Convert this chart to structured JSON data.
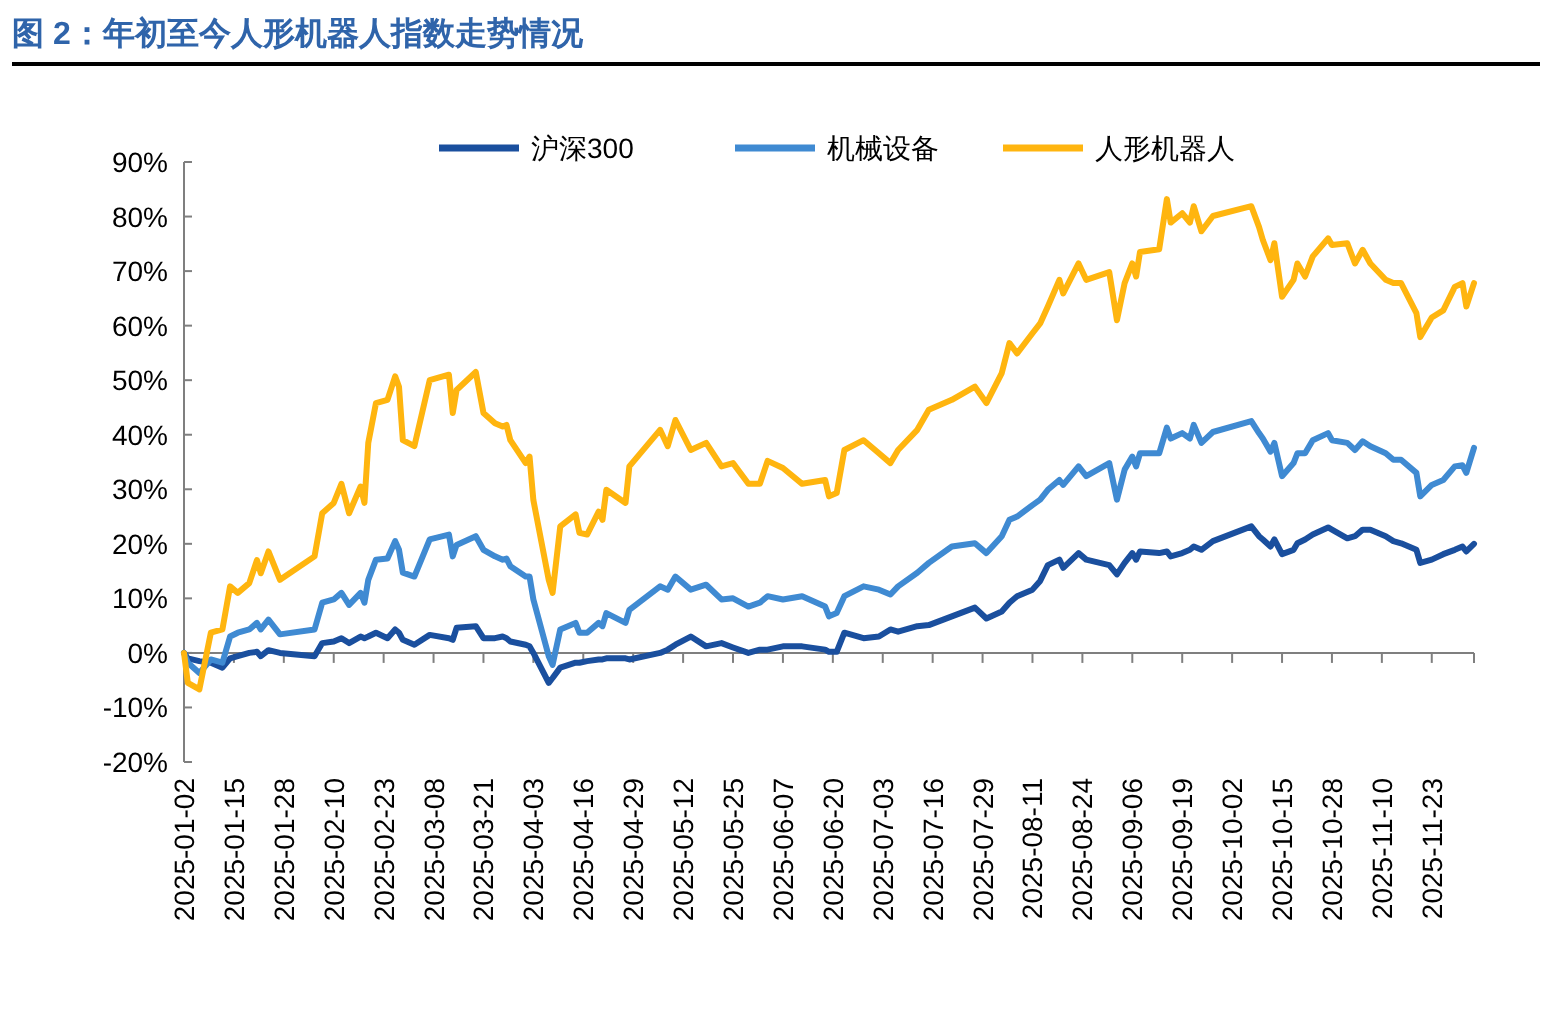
{
  "chart_data": {
    "type": "line",
    "title": "图 2：年初至今人形机器人指数走势情况",
    "x": [
      "2025-01-02",
      "2025-01-03",
      "2025-01-06",
      "2025-01-09",
      "2025-01-12",
      "2025-01-14",
      "2025-01-16",
      "2025-01-19",
      "2025-01-21",
      "2025-01-22",
      "2025-01-24",
      "2025-01-27",
      "2025-02-05",
      "2025-02-07",
      "2025-02-10",
      "2025-02-12",
      "2025-02-14",
      "2025-02-17",
      "2025-02-18",
      "2025-02-19",
      "2025-02-21",
      "2025-02-24",
      "2025-02-26",
      "2025-02-27",
      "2025-02-28",
      "2025-03-03",
      "2025-03-07",
      "2025-03-12",
      "2025-03-13",
      "2025-03-14",
      "2025-03-19",
      "2025-03-21",
      "2025-03-24",
      "2025-03-26",
      "2025-03-27",
      "2025-03-28",
      "2025-04-01",
      "2025-04-02",
      "2025-04-03",
      "2025-04-07",
      "2025-04-08",
      "2025-04-10",
      "2025-04-14",
      "2025-04-15",
      "2025-04-17",
      "2025-04-20",
      "2025-04-21",
      "2025-04-22",
      "2025-04-27",
      "2025-04-28",
      "2025-05-06",
      "2025-05-08",
      "2025-05-10",
      "2025-05-14",
      "2025-05-18",
      "2025-05-22",
      "2025-05-25",
      "2025-05-29",
      "2025-06-01",
      "2025-06-03",
      "2025-06-07",
      "2025-06-12",
      "2025-06-18",
      "2025-06-19",
      "2025-06-21",
      "2025-06-23",
      "2025-06-28",
      "2025-07-02",
      "2025-07-05",
      "2025-07-07",
      "2025-07-12",
      "2025-07-15",
      "2025-07-21",
      "2025-07-27",
      "2025-07-30",
      "2025-08-03",
      "2025-08-05",
      "2025-08-07",
      "2025-08-11",
      "2025-08-13",
      "2025-08-15",
      "2025-08-18",
      "2025-08-19",
      "2025-08-23",
      "2025-08-25",
      "2025-08-31",
      "2025-09-02",
      "2025-09-04",
      "2025-09-06",
      "2025-09-07",
      "2025-09-08",
      "2025-09-13",
      "2025-09-15",
      "2025-09-16",
      "2025-09-19",
      "2025-09-21",
      "2025-09-22",
      "2025-09-24",
      "2025-09-27",
      "2025-10-07",
      "2025-10-09",
      "2025-10-10",
      "2025-10-12",
      "2025-10-13",
      "2025-10-15",
      "2025-10-18",
      "2025-10-19",
      "2025-10-21",
      "2025-10-23",
      "2025-10-27",
      "2025-10-28",
      "2025-11-01",
      "2025-11-03",
      "2025-11-05",
      "2025-11-07",
      "2025-11-11",
      "2025-11-13",
      "2025-11-15",
      "2025-11-19",
      "2025-11-20",
      "2025-11-23",
      "2025-11-26",
      "2025-11-29",
      "2025-12-01",
      "2025-12-02",
      "2025-12-04"
    ],
    "series": [
      {
        "name": "沪深300",
        "color": "#1a4f9e",
        "values": [
          0,
          -1,
          -1.5,
          -1.8,
          -2.7,
          -1,
          -0.6,
          0,
          0.2,
          -0.6,
          0.5,
          0,
          -0.6,
          1.8,
          2.1,
          2.7,
          1.8,
          3,
          2.7,
          3,
          3.7,
          2.7,
          4.3,
          3.7,
          2.4,
          1.5,
          3.3,
          2.7,
          2.4,
          4.6,
          4.9,
          2.7,
          2.7,
          3,
          2.7,
          2.1,
          1.5,
          1.2,
          0,
          -5.5,
          -4.6,
          -2.7,
          -1.8,
          -1.8,
          -1.5,
          -1.2,
          -1.2,
          -1,
          -1,
          -1.2,
          0,
          0.6,
          1.5,
          3,
          1.2,
          1.8,
          1,
          0,
          0.6,
          0.6,
          1.2,
          1.2,
          0.6,
          0.2,
          0.2,
          3.7,
          2.7,
          3,
          4.3,
          3.9,
          4.9,
          5.1,
          6.7,
          8.3,
          6.3,
          7.6,
          9.2,
          10.4,
          11.6,
          13.2,
          16.1,
          17.1,
          15.6,
          18.3,
          17.1,
          16.1,
          14.4,
          16.5,
          18.3,
          17.1,
          18.6,
          18.3,
          18.6,
          17.7,
          18.3,
          18.9,
          19.5,
          18.9,
          20.5,
          23.2,
          21.4,
          20.8,
          19.5,
          20.8,
          18.1,
          18.9,
          20.1,
          20.8,
          21.7,
          23,
          22.6,
          21,
          21.4,
          22.6,
          22.6,
          21.4,
          20.5,
          20.1,
          18.9,
          16.5,
          17.1,
          18.1,
          18.9,
          19.5,
          18.6,
          20
        ]
      },
      {
        "name": "机械设备",
        "color": "#3f8ad2",
        "values": [
          0,
          -1.8,
          -3.7,
          -1.2,
          -1.8,
          3,
          3.7,
          4.3,
          5.5,
          4.3,
          6.1,
          3.4,
          4.3,
          9.2,
          9.8,
          11,
          8.8,
          11,
          9.2,
          13.4,
          17.1,
          17.3,
          20.5,
          18.9,
          14.7,
          14,
          20.8,
          21.7,
          17.7,
          19.8,
          21.4,
          18.9,
          17.7,
          17.1,
          17.3,
          15.9,
          14,
          14,
          9.8,
          -0.6,
          -2.2,
          4.3,
          5.5,
          3.7,
          3.7,
          5.5,
          4.9,
          7.3,
          5.5,
          7.9,
          12.2,
          11.6,
          14,
          11.6,
          12.5,
          9.8,
          10,
          8.5,
          9.2,
          10.4,
          9.8,
          10.4,
          8.5,
          6.7,
          7.3,
          10.4,
          12.2,
          11.6,
          10.7,
          12.2,
          14.7,
          16.5,
          19.5,
          20.1,
          18.3,
          21.4,
          24.4,
          25,
          27.1,
          28.1,
          29.9,
          31.7,
          30.8,
          34.2,
          32.4,
          34.8,
          28.1,
          33.6,
          36,
          34.2,
          36.6,
          36.6,
          41.3,
          39.3,
          40.3,
          39.3,
          41.8,
          38.5,
          40.5,
          42.5,
          40.3,
          39.3,
          36.9,
          38.5,
          32.4,
          34.8,
          36.6,
          36.6,
          39,
          40.3,
          39,
          38.5,
          37.2,
          38.8,
          37.9,
          36.6,
          35.4,
          35.4,
          33,
          28.7,
          30.8,
          31.7,
          34.2,
          34.4,
          33,
          37.6
        ]
      },
      {
        "name": "人形机器人",
        "color": "#ffb50f",
        "values": [
          0,
          -5.5,
          -6.7,
          3.7,
          4.3,
          12.2,
          11,
          12.8,
          17,
          14.6,
          18.6,
          13.4,
          17.7,
          25.6,
          27.5,
          31,
          25.6,
          30.5,
          27.5,
          38.5,
          45.8,
          46.4,
          50.7,
          48.8,
          39,
          37.9,
          50,
          51,
          44,
          48.2,
          51.5,
          44,
          42.1,
          41.5,
          41.8,
          39,
          34.8,
          36,
          28,
          13.4,
          11,
          23.2,
          25.4,
          22,
          21.7,
          25.9,
          24.4,
          29.9,
          27.5,
          34.2,
          40.9,
          37.9,
          42.7,
          37.2,
          38.5,
          34.2,
          34.8,
          31,
          31,
          35.2,
          33.9,
          31,
          31.7,
          28.7,
          29.3,
          37.2,
          39,
          36.6,
          34.8,
          37.2,
          40.9,
          44.6,
          46.4,
          48.8,
          45.8,
          51.3,
          56.8,
          54.9,
          58.6,
          60.4,
          63.5,
          68.4,
          65.9,
          71.4,
          68.4,
          69.8,
          61,
          67.8,
          71.4,
          69,
          73.5,
          74,
          83.2,
          78.9,
          80.6,
          78.9,
          81.9,
          77.3,
          80.1,
          81.9,
          78.1,
          75.7,
          72,
          75.1,
          65.3,
          68.4,
          71.4,
          69,
          72.7,
          76,
          74.8,
          75.1,
          71.4,
          73.9,
          71.4,
          68.4,
          67.8,
          67.8,
          62.3,
          57.9,
          61.5,
          62.8,
          67.1,
          67.8,
          63.5,
          67.8
        ]
      }
    ],
    "xlim": [
      "2025-01-02",
      "2025-12-04"
    ],
    "xticks": [
      "2025-01-02",
      "2025-01-15",
      "2025-01-28",
      "2025-02-10",
      "2025-02-23",
      "2025-03-08",
      "2025-03-21",
      "2025-04-03",
      "2025-04-16",
      "2025-04-29",
      "2025-05-12",
      "2025-05-25",
      "2025-06-07",
      "2025-06-20",
      "2025-07-03",
      "2025-07-16",
      "2025-07-29",
      "2025-08-11",
      "2025-08-24",
      "2025-09-06",
      "2025-09-19",
      "2025-10-02",
      "2025-10-15",
      "2025-10-28",
      "2025-11-10",
      "2025-11-23"
    ],
    "ylim": [
      -20,
      90
    ],
    "yticks": [
      {
        "value": -20,
        "label": "-20%"
      },
      {
        "value": -10,
        "label": "-10%"
      },
      {
        "value": 0,
        "label": "0%"
      },
      {
        "value": 10,
        "label": "10%"
      },
      {
        "value": 20,
        "label": "20%"
      },
      {
        "value": 30,
        "label": "30%"
      },
      {
        "value": 40,
        "label": "40%"
      },
      {
        "value": 50,
        "label": "50%"
      },
      {
        "value": 60,
        "label": "60%"
      },
      {
        "value": 70,
        "label": "70%"
      },
      {
        "value": 80,
        "label": "80%"
      },
      {
        "value": 90,
        "label": "90%"
      }
    ],
    "ref_lines": [
      {
        "axis": "y",
        "value": 0,
        "color": "#7f7f7f"
      }
    ],
    "grid": false,
    "legend": "top",
    "marker": "none",
    "line_style": "solid"
  }
}
